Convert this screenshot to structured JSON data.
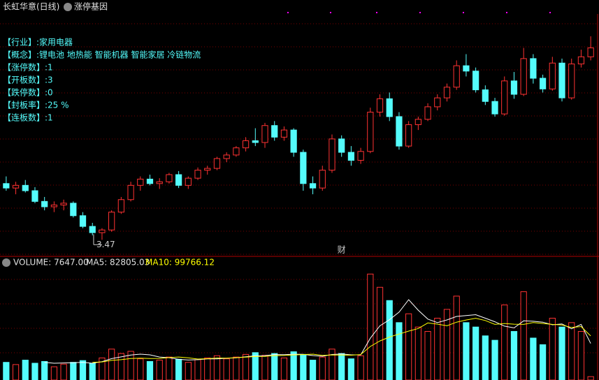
{
  "chart_data": {
    "type": "candlestick",
    "title": "长虹华意(日线)",
    "subtitle": "涨停基因",
    "info": [
      "【行业】:家用电器",
      "【概念】:锂电池 地热能 智能机器 智能家居 冷链物流",
      "【涨停数】:1",
      "【开板数】:3",
      "【跌停数】:0",
      "【封板率】:25 %",
      "【连板数】:1"
    ],
    "marker": "财",
    "up_color": "#ff3232",
    "down_color": "#54fcfc",
    "ylim": [
      3.3,
      6.0
    ],
    "candles": [
      [
        4.1,
        4.18,
        4.02,
        4.05
      ],
      [
        4.05,
        4.12,
        3.98,
        4.08
      ],
      [
        4.08,
        4.14,
        4.0,
        4.02
      ],
      [
        4.02,
        4.06,
        3.88,
        3.9
      ],
      [
        3.9,
        3.95,
        3.8,
        3.84
      ],
      [
        3.84,
        3.9,
        3.78,
        3.86
      ],
      [
        3.86,
        3.92,
        3.8,
        3.88
      ],
      [
        3.88,
        3.9,
        3.72,
        3.74
      ],
      [
        3.74,
        3.78,
        3.6,
        3.62
      ],
      [
        3.62,
        3.66,
        3.52,
        3.55
      ],
      [
        3.55,
        3.6,
        3.47,
        3.58
      ],
      [
        3.58,
        3.8,
        3.56,
        3.78
      ],
      [
        3.78,
        3.95,
        3.76,
        3.92
      ],
      [
        3.92,
        4.12,
        3.9,
        4.08
      ],
      [
        4.08,
        4.18,
        4.02,
        4.15
      ],
      [
        4.15,
        4.2,
        4.08,
        4.1
      ],
      [
        4.1,
        4.16,
        4.04,
        4.12
      ],
      [
        4.12,
        4.22,
        4.1,
        4.2
      ],
      [
        4.2,
        4.24,
        4.05,
        4.08
      ],
      [
        4.08,
        4.18,
        4.04,
        4.16
      ],
      [
        4.16,
        4.28,
        4.14,
        4.25
      ],
      [
        4.25,
        4.3,
        4.2,
        4.27
      ],
      [
        4.27,
        4.4,
        4.25,
        4.38
      ],
      [
        4.38,
        4.45,
        4.34,
        4.42
      ],
      [
        4.42,
        4.52,
        4.4,
        4.5
      ],
      [
        4.5,
        4.62,
        4.46,
        4.58
      ],
      [
        4.58,
        4.72,
        4.52,
        4.56
      ],
      [
        4.56,
        4.78,
        4.5,
        4.75
      ],
      [
        4.75,
        4.8,
        4.58,
        4.62
      ],
      [
        4.62,
        4.74,
        4.58,
        4.7
      ],
      [
        4.7,
        4.72,
        4.4,
        4.45
      ],
      [
        4.45,
        4.48,
        4.02,
        4.1
      ],
      [
        4.1,
        4.18,
        3.98,
        4.05
      ],
      [
        4.05,
        4.3,
        4.02,
        4.25
      ],
      [
        4.25,
        4.65,
        4.22,
        4.6
      ],
      [
        4.6,
        4.64,
        4.4,
        4.45
      ],
      [
        4.45,
        4.52,
        4.3,
        4.36
      ],
      [
        4.36,
        4.5,
        4.32,
        4.46
      ],
      [
        4.46,
        4.95,
        4.44,
        4.9
      ],
      [
        4.9,
        5.1,
        4.85,
        5.05
      ],
      [
        5.05,
        5.12,
        4.8,
        4.85
      ],
      [
        4.85,
        4.9,
        4.48,
        4.52
      ],
      [
        4.52,
        4.8,
        4.5,
        4.76
      ],
      [
        4.76,
        4.85,
        4.7,
        4.82
      ],
      [
        4.82,
        5.0,
        4.8,
        4.96
      ],
      [
        4.96,
        5.1,
        4.92,
        5.06
      ],
      [
        5.06,
        5.22,
        5.02,
        5.18
      ],
      [
        5.18,
        5.48,
        5.15,
        5.42
      ],
      [
        5.42,
        5.55,
        5.3,
        5.36
      ],
      [
        5.36,
        5.4,
        5.12,
        5.15
      ],
      [
        5.15,
        5.2,
        4.98,
        5.02
      ],
      [
        5.02,
        5.06,
        4.85,
        4.88
      ],
      [
        4.88,
        5.3,
        4.86,
        5.25
      ],
      [
        5.25,
        5.35,
        5.05,
        5.1
      ],
      [
        5.1,
        5.62,
        5.08,
        5.5
      ],
      [
        5.5,
        5.55,
        5.22,
        5.28
      ],
      [
        5.28,
        5.32,
        5.12,
        5.16
      ],
      [
        5.16,
        5.52,
        5.14,
        5.45
      ],
      [
        5.45,
        5.5,
        5.02,
        5.06
      ],
      [
        5.06,
        5.5,
        5.04,
        5.44
      ],
      [
        5.44,
        5.6,
        5.4,
        5.52
      ],
      [
        5.52,
        5.75,
        5.48,
        5.62
      ]
    ],
    "volume": {
      "header_volume": "VOLUME: 7647.00",
      "header_ma5": "MA5: 82805.03",
      "header_ma10": "MA10: 99766.12",
      "ma5_color": "#ffffff",
      "ma10_color": "#ffff00",
      "ylim": [
        0,
        250000
      ],
      "values": [
        40000,
        35000,
        45000,
        38000,
        42000,
        30000,
        36000,
        40000,
        44000,
        38000,
        50000,
        70000,
        60000,
        65000,
        48000,
        42000,
        45000,
        52000,
        47000,
        40000,
        46000,
        50000,
        55000,
        48000,
        52000,
        58000,
        62000,
        56000,
        60000,
        50000,
        64000,
        58000,
        45000,
        52000,
        70000,
        60000,
        48000,
        55000,
        240000,
        210000,
        180000,
        130000,
        150000,
        120000,
        110000,
        140000,
        160000,
        190000,
        130000,
        120000,
        100000,
        90000,
        170000,
        110000,
        200000,
        95000,
        80000,
        140000,
        120000,
        130000,
        110000,
        7647
      ],
      "ma5": [
        null,
        null,
        null,
        null,
        40000,
        38000,
        38600,
        39200,
        40000,
        38000,
        41600,
        48400,
        52400,
        56600,
        58600,
        57000,
        52000,
        50400,
        46800,
        45200,
        46000,
        48000,
        48000,
        49200,
        50200,
        52600,
        55000,
        55200,
        57600,
        57200,
        58400,
        58000,
        55400,
        53800,
        57800,
        58800,
        57000,
        57000,
        94600,
        122600,
        136600,
        153800,
        182000,
        158000,
        138000,
        130000,
        136000,
        144000,
        146000,
        148000,
        140000,
        132000,
        122000,
        118000,
        134000,
        133000,
        131000,
        125000,
        127000,
        116000,
        126000,
        82805
      ],
      "ma10": [
        null,
        null,
        null,
        null,
        null,
        null,
        null,
        null,
        null,
        39800,
        41000,
        44500,
        46000,
        48500,
        49300,
        48500,
        48900,
        50700,
        52000,
        50300,
        47400,
        48200,
        49900,
        49500,
        50600,
        51800,
        53100,
        53500,
        55300,
        55600,
        56800,
        57600,
        58600,
        55800,
        56800,
        56700,
        56100,
        57800,
        76000,
        88400,
        97300,
        104100,
        110800,
        116600,
        129200,
        126600,
        122900,
        131000,
        135900,
        139800,
        134800,
        126000,
        128000,
        126400,
        126000,
        130000,
        128000,
        126000,
        124500,
        119000,
        121000,
        99766
      ]
    }
  }
}
